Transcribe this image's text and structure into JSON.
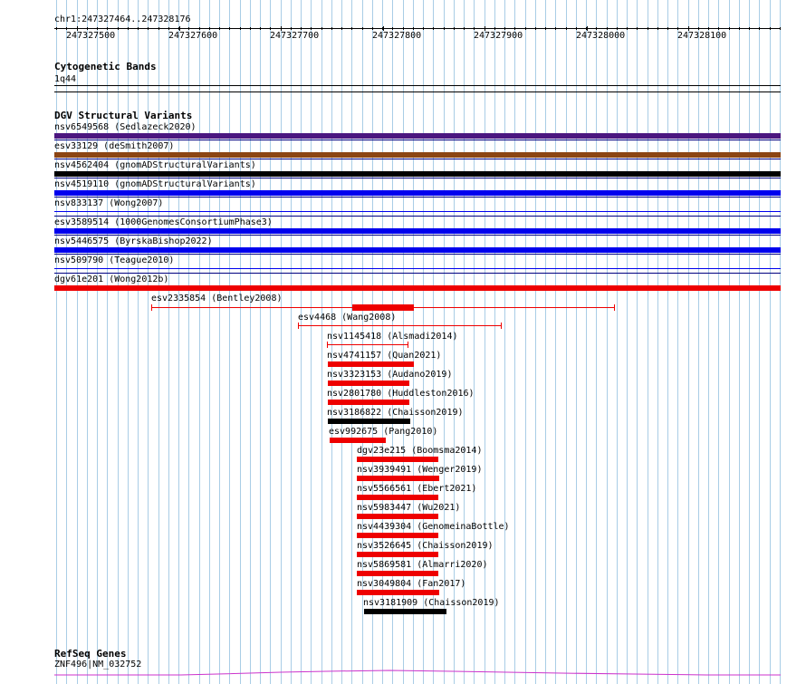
{
  "colors": {
    "grid": "#a9cde6",
    "purple": "#4b1780",
    "brown": "#8b4513",
    "black": "#000000",
    "blue": "#0000ee",
    "red": "#ee0000",
    "gene": "#cc33cc",
    "separator": "#000080"
  },
  "ruler": {
    "label": "chr1:247327464..247328176",
    "ticks": [
      "247327500",
      "247327600",
      "247327700",
      "247327800",
      "247327900",
      "247328000",
      "247328100"
    ]
  },
  "cytoband": {
    "title": "Cytogenetic Bands",
    "band": "1q44"
  },
  "dgv": {
    "title": "DGV Structural Variants",
    "full_rows": [
      {
        "label": "nsv6549568 (Sedlazeck2020)",
        "color": "#4b1780"
      },
      {
        "label": "esv33129 (deSmith2007)",
        "color": "#8b4513"
      },
      {
        "label": "nsv4562404 (gnomADStructuralVariants)",
        "color": "#000000"
      },
      {
        "label": "nsv4519110 (gnomADStructuralVariants)",
        "color": "#0000ee"
      },
      {
        "label": "nsv833137 (Wong2007)",
        "color": "thin"
      },
      {
        "label": "esv3589514 (1000GenomesConsortiumPhase3)",
        "color": "#0000ee"
      },
      {
        "label": "nsv5446575 (ByrskaBishop2022)",
        "color": "#0000ee"
      },
      {
        "label": "nsv509790 (Teague2010)",
        "color": "thin"
      },
      {
        "label": "dgv61e201 (Wong2012b)",
        "color": "#ee0000"
      }
    ],
    "partial_rows": [
      {
        "label": "esv2335854 (Bentley2008)",
        "kind": "bracket"
      },
      {
        "label": "esv4468 (Wang2008)",
        "kind": "bracket"
      },
      {
        "label": "nsv1145418 (Alsmadi2014)",
        "kind": "bracket"
      },
      {
        "label": "nsv4741157 (Quan2021)",
        "kind": "bar"
      },
      {
        "label": "nsv3323153 (Audano2019)",
        "kind": "bar"
      },
      {
        "label": "nsv2801780 (Huddleston2016)",
        "kind": "bar"
      },
      {
        "label": "nsv3186822 (Chaisson2019)",
        "kind": "bar"
      },
      {
        "label": "esv992675 (Pang2010)",
        "kind": "bar"
      },
      {
        "label": "dgv23e215 (Boomsma2014)",
        "kind": "bar"
      },
      {
        "label": "nsv3939491 (Wenger2019)",
        "kind": "bar"
      },
      {
        "label": "nsv5566561 (Ebert2021)",
        "kind": "bar"
      },
      {
        "label": "nsv5983447 (Wu2021)",
        "kind": "bar"
      },
      {
        "label": "nsv4439304 (GenomeinaBottle)",
        "kind": "bar"
      },
      {
        "label": "nsv3526645 (Chaisson2019)",
        "kind": "bar"
      },
      {
        "label": "nsv5869581 (Almarri2020)",
        "kind": "bar"
      },
      {
        "label": "nsv3049804 (Fan2017)",
        "kind": "bar"
      },
      {
        "label": "nsv3181909 (Chaisson2019)",
        "kind": "bar"
      }
    ]
  },
  "refseq": {
    "title": "RefSeq Genes",
    "gene": "ZNF496|NM_032752"
  }
}
